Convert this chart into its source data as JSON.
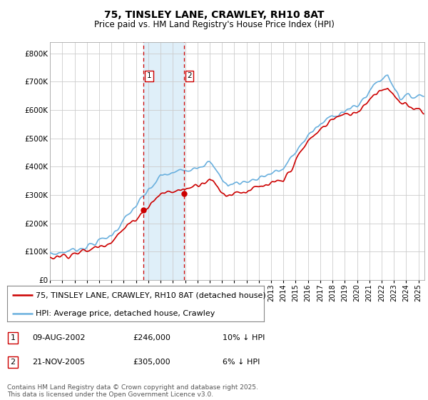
{
  "title": "75, TINSLEY LANE, CRAWLEY, RH10 8AT",
  "subtitle": "Price paid vs. HM Land Registry's House Price Index (HPI)",
  "ylabel_ticks": [
    "£0",
    "£100K",
    "£200K",
    "£300K",
    "£400K",
    "£500K",
    "£600K",
    "£700K",
    "£800K"
  ],
  "ytick_values": [
    0,
    100000,
    200000,
    300000,
    400000,
    500000,
    600000,
    700000,
    800000
  ],
  "ylim": [
    0,
    840000
  ],
  "xlim_start": 1995.0,
  "xlim_end": 2025.5,
  "hpi_color": "#6ab0de",
  "price_color": "#cc0000",
  "background_color": "#ffffff",
  "grid_color": "#cccccc",
  "highlight_color": "#daedf8",
  "vline_color": "#cc0000",
  "sale1_x": 2002.61,
  "sale1_y": 246000,
  "sale1_label": "1",
  "sale2_x": 2005.9,
  "sale2_y": 305000,
  "sale2_label": "2",
  "legend_line1": "75, TINSLEY LANE, CRAWLEY, RH10 8AT (detached house)",
  "legend_line2": "HPI: Average price, detached house, Crawley",
  "table_row1": [
    "1",
    "09-AUG-2002",
    "£246,000",
    "10% ↓ HPI"
  ],
  "table_row2": [
    "2",
    "21-NOV-2005",
    "£305,000",
    "6% ↓ HPI"
  ],
  "footnote": "Contains HM Land Registry data © Crown copyright and database right 2025.\nThis data is licensed under the Open Government Licence v3.0.",
  "title_fontsize": 10,
  "subtitle_fontsize": 8.5,
  "tick_fontsize": 7.5,
  "legend_fontsize": 8,
  "table_fontsize": 8,
  "footnote_fontsize": 6.5
}
